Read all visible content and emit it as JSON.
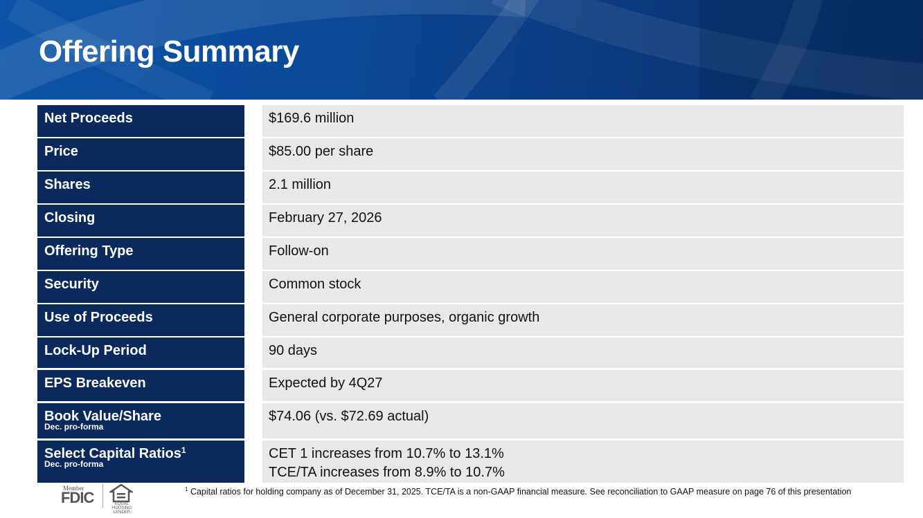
{
  "header": {
    "title": "Offering Summary"
  },
  "rows": [
    {
      "label": "Net Proceeds",
      "value": "$169.6 million"
    },
    {
      "label": "Price",
      "value": "$85.00 per share"
    },
    {
      "label": "Shares",
      "value": "2.1 million"
    },
    {
      "label": "Closing",
      "value": "February 27, 2026"
    },
    {
      "label": "Offering Type",
      "value": "Follow-on"
    },
    {
      "label": "Security",
      "value": "Common stock"
    },
    {
      "label": "Use of Proceeds",
      "value": "General corporate purposes, organic growth"
    },
    {
      "label": "Lock-Up Period",
      "value": "90 days"
    },
    {
      "label": "EPS Breakeven",
      "value": "Expected by 4Q27"
    },
    {
      "label": "Book Value/Share",
      "sublabel": "Dec. pro-forma",
      "value": "$74.06 (vs. $72.69 actual)"
    },
    {
      "label": "Select Capital Ratios",
      "footnote_marker": "1",
      "sublabel": "Dec. pro-forma",
      "value": "CET 1 increases from 10.7% to 13.1%",
      "value2": "TCE/TA increases from 8.9% to 10.7%"
    }
  ],
  "footer": {
    "fdic_member": "Member",
    "fdic": "FDIC",
    "equal_housing_line1": "EQUAL HOUSING",
    "equal_housing_line2": "LENDER",
    "footnote_marker": "1",
    "footnote_text": "Capital ratios for holding company as of December 31, 2025. TCE/TA is a non-GAAP financial measure. See reconciliation to GAAP measure on page 76 of this presentation"
  },
  "colors": {
    "banner": "#0a4a98",
    "label_bg": "#0a2a5e",
    "value_bg": "#e6e8ea"
  }
}
